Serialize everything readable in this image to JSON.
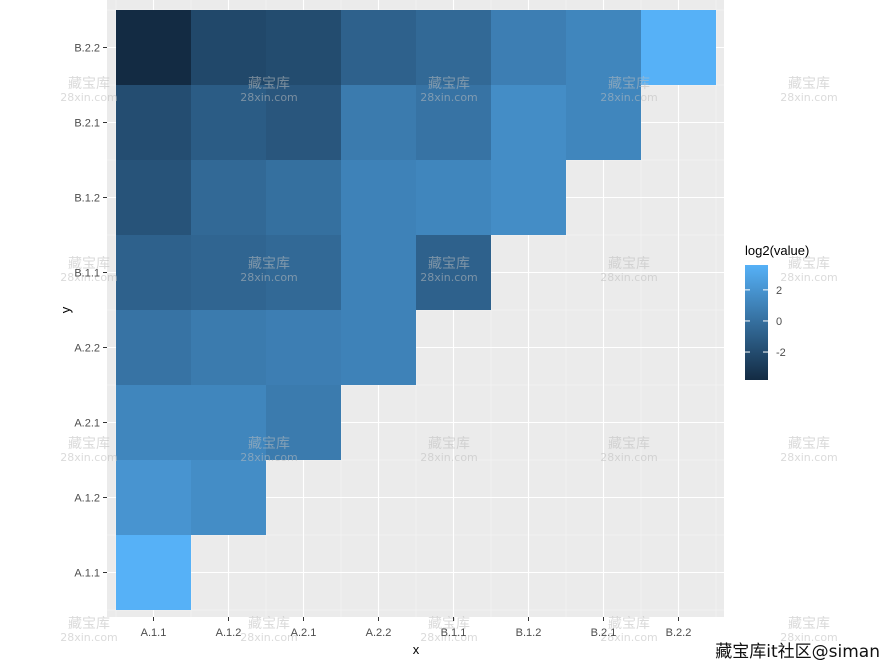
{
  "chart_data": {
    "type": "heatmap",
    "x_categories": [
      "A.1.1",
      "A.1.2",
      "A.2.1",
      "A.2.2",
      "B.1.1",
      "B.1.2",
      "B.2.1",
      "B.2.2"
    ],
    "y_categories": [
      "A.1.1",
      "A.1.2",
      "A.2.1",
      "A.2.2",
      "B.1.1",
      "B.1.2",
      "B.2.1",
      "B.2.2"
    ],
    "xlabel": "x",
    "ylabel": "y",
    "legend_title": "log2(value)",
    "legend_ticks": [
      2,
      0,
      -2
    ],
    "color_range": [
      -3.8,
      3.6
    ],
    "color_low": "#132B43",
    "color_high": "#56B1F7",
    "cells": [
      {
        "x": "A.1.1",
        "y": "A.1.1",
        "value": 3.6
      },
      {
        "x": "A.1.1",
        "y": "A.1.2",
        "value": 2.0
      },
      {
        "x": "A.1.2",
        "y": "A.1.2",
        "value": 1.6
      },
      {
        "x": "A.1.1",
        "y": "A.2.1",
        "value": 1.2
      },
      {
        "x": "A.1.2",
        "y": "A.2.1",
        "value": 1.2
      },
      {
        "x": "A.2.1",
        "y": "A.2.1",
        "value": 0.6
      },
      {
        "x": "A.1.1",
        "y": "A.2.2",
        "value": 0.2
      },
      {
        "x": "A.1.2",
        "y": "A.2.2",
        "value": 0.6
      },
      {
        "x": "A.2.1",
        "y": "A.2.2",
        "value": 0.8
      },
      {
        "x": "A.2.2",
        "y": "A.2.2",
        "value": 1.0
      },
      {
        "x": "A.1.1",
        "y": "B.1.1",
        "value": -0.8
      },
      {
        "x": "A.1.2",
        "y": "B.1.1",
        "value": -0.6
      },
      {
        "x": "A.2.1",
        "y": "B.1.1",
        "value": -0.4
      },
      {
        "x": "A.2.2",
        "y": "B.1.1",
        "value": 1.0
      },
      {
        "x": "B.1.1",
        "y": "B.1.1",
        "value": -0.8
      },
      {
        "x": "A.1.1",
        "y": "B.1.2",
        "value": -1.6
      },
      {
        "x": "A.1.2",
        "y": "B.1.2",
        "value": -0.4
      },
      {
        "x": "A.2.1",
        "y": "B.1.2",
        "value": 0.0
      },
      {
        "x": "A.2.2",
        "y": "B.1.2",
        "value": 1.0
      },
      {
        "x": "B.1.1",
        "y": "B.1.2",
        "value": 1.2
      },
      {
        "x": "B.1.2",
        "y": "B.1.2",
        "value": 1.6
      },
      {
        "x": "A.1.1",
        "y": "B.2.1",
        "value": -1.9
      },
      {
        "x": "A.1.2",
        "y": "B.2.1",
        "value": -1.1
      },
      {
        "x": "A.2.1",
        "y": "B.2.1",
        "value": -1.4
      },
      {
        "x": "A.2.2",
        "y": "B.2.1",
        "value": 0.6
      },
      {
        "x": "B.1.1",
        "y": "B.2.1",
        "value": 0.2
      },
      {
        "x": "B.1.2",
        "y": "B.2.1",
        "value": 1.6
      },
      {
        "x": "B.2.1",
        "y": "B.2.1",
        "value": 1.2
      },
      {
        "x": "A.1.1",
        "y": "B.2.2",
        "value": -3.8
      },
      {
        "x": "A.1.2",
        "y": "B.2.2",
        "value": -2.2
      },
      {
        "x": "A.2.1",
        "y": "B.2.2",
        "value": -2.0
      },
      {
        "x": "A.2.2",
        "y": "B.2.2",
        "value": -0.8
      },
      {
        "x": "B.1.1",
        "y": "B.2.2",
        "value": -0.4
      },
      {
        "x": "B.1.2",
        "y": "B.2.2",
        "value": 0.8
      },
      {
        "x": "B.2.1",
        "y": "B.2.2",
        "value": 1.2
      },
      {
        "x": "B.2.2",
        "y": "B.2.2",
        "value": 3.6
      }
    ]
  },
  "watermark": {
    "main": "藏宝库",
    "sub": "28xin.com"
  },
  "credit": "藏宝库it社区@siman"
}
